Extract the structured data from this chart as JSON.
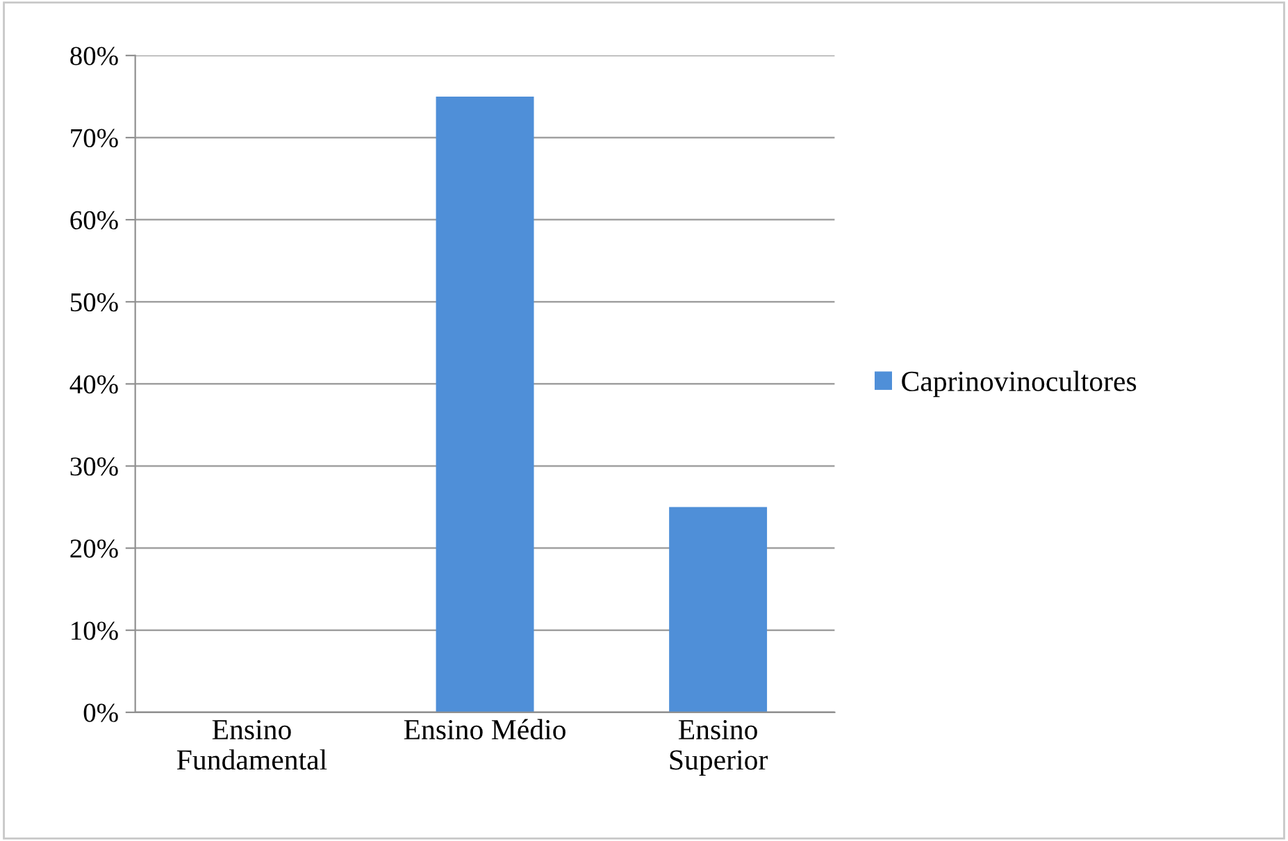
{
  "chart_data": {
    "type": "bar",
    "categories": [
      "Ensino\nFundamental",
      "Ensino Médio",
      "Ensino\nSuperior"
    ],
    "series": [
      {
        "name": "Caprinovinocultores",
        "color": "#4f8fd8",
        "values": [
          0,
          75,
          25
        ]
      }
    ],
    "ylim": [
      0,
      80
    ],
    "yticks": [
      {
        "value": 0,
        "label": "0%"
      },
      {
        "value": 10,
        "label": "10%"
      },
      {
        "value": 20,
        "label": "20%"
      },
      {
        "value": 30,
        "label": "30%"
      },
      {
        "value": 40,
        "label": "40%"
      },
      {
        "value": 50,
        "label": "50%"
      },
      {
        "value": 60,
        "label": "60%"
      },
      {
        "value": 70,
        "label": "70%"
      },
      {
        "value": 80,
        "label": "80%"
      }
    ],
    "grid": "y",
    "legend": "right"
  }
}
